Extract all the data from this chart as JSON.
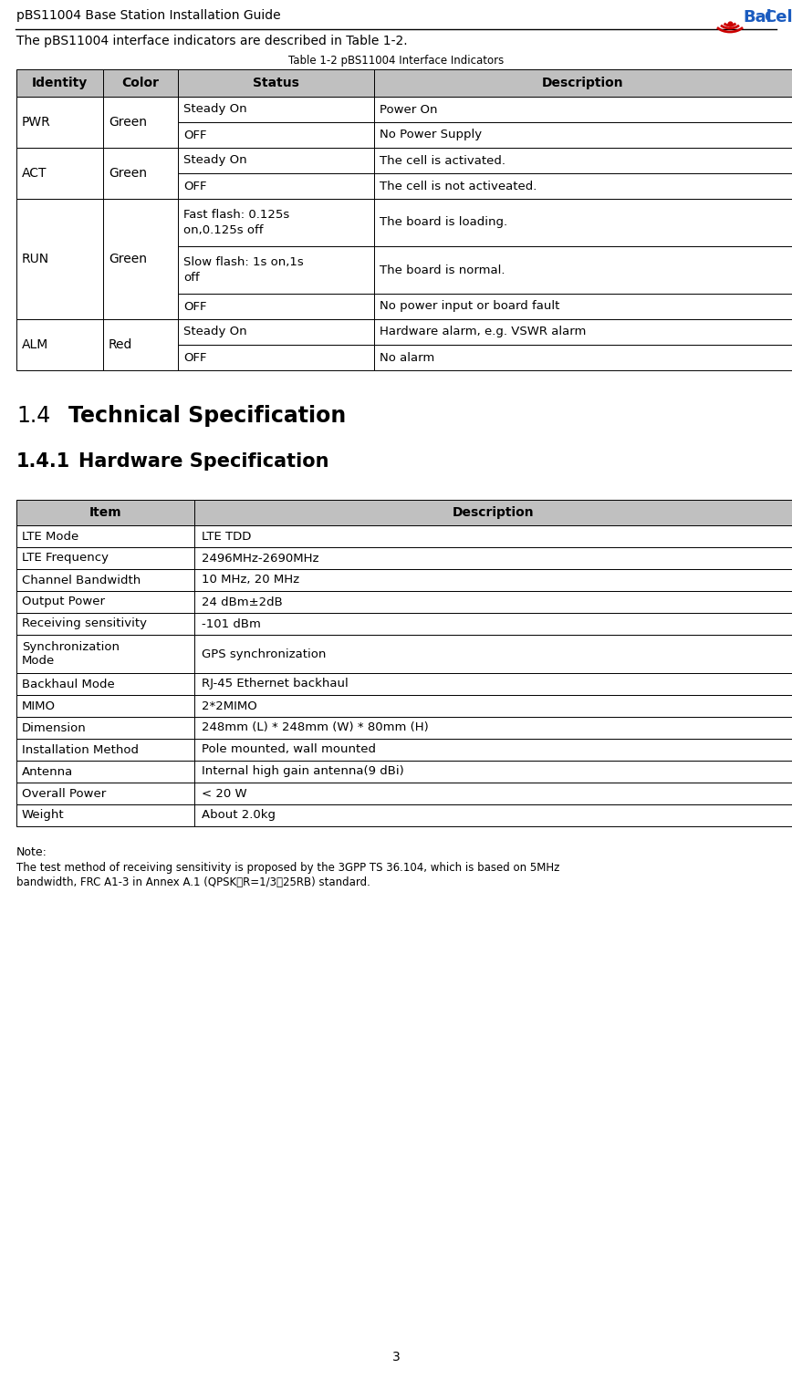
{
  "page_title": "pBS11004 Base Station Installation Guide",
  "intro_text": "The pBS11004 interface indicators are described in Table 1-2.",
  "table1_title": "Table 1-2 pBS11004 Interface Indicators",
  "table1_header": [
    "Identity",
    "Color",
    "Status",
    "Description"
  ],
  "table1_rows": [
    [
      "PWR",
      "Green",
      "Steady On",
      "Power On"
    ],
    [
      "PWR",
      "Green",
      "OFF",
      "No Power Supply"
    ],
    [
      "ACT",
      "Green",
      "Steady On",
      "The cell is activated."
    ],
    [
      "ACT",
      "Green",
      "OFF",
      "The cell is not activeated."
    ],
    [
      "RUN",
      "Green",
      "Fast flash: 0.125s\non,0.125s off",
      "The board is loading."
    ],
    [
      "RUN",
      "Green",
      "Slow flash: 1s on,1s\noff",
      "The board is normal."
    ],
    [
      "RUN",
      "Green",
      "OFF",
      "No power input or board fault"
    ],
    [
      "ALM",
      "Red",
      "Steady On",
      "Hardware alarm, e.g. VSWR alarm"
    ],
    [
      "ALM",
      "Red",
      "OFF",
      "No alarm"
    ]
  ],
  "section_14_num": "1.4",
  "section_14_text": "Technical Specification",
  "section_141_num": "1.4.1",
  "section_141_text": "Hardware Specification",
  "table2_header": [
    "Item",
    "Description"
  ],
  "table2_rows": [
    [
      "LTE Mode",
      "LTE TDD"
    ],
    [
      "LTE Frequency",
      "2496MHz-2690MHz"
    ],
    [
      "Channel Bandwidth",
      "10 MHz, 20 MHz"
    ],
    [
      "Output Power",
      "24 dBm±2dB"
    ],
    [
      "Receiving sensitivity",
      "-101 dBm"
    ],
    [
      "Synchronization\nMode",
      "GPS synchronization"
    ],
    [
      "Backhaul Mode",
      "RJ-45 Ethernet backhaul"
    ],
    [
      "MIMO",
      "2*2MIMO"
    ],
    [
      "Dimension",
      "248mm (L) * 248mm (W) * 80mm (H)"
    ],
    [
      "Installation Method",
      "Pole mounted, wall mounted"
    ],
    [
      "Antenna",
      "Internal high gain antenna(9 dBi)"
    ],
    [
      "Overall Power",
      "< 20 W"
    ],
    [
      "Weight",
      "About 2.0kg"
    ]
  ],
  "note_title": "Note:",
  "note_line1": "The test method of receiving sensitivity is proposed by the 3GPP TS 36.104, which is based on 5MHz",
  "note_line2": "bandwidth, FRC A1-3 in Annex A.1 (QPSK，R=1/3，25RB) standard.",
  "page_number": "3",
  "header_bg": "#c0c0c0",
  "logo_bai_color": "#1a5bbf",
  "logo_cells_color": "#1a5bbf",
  "logo_arc_color": "#cc0000"
}
